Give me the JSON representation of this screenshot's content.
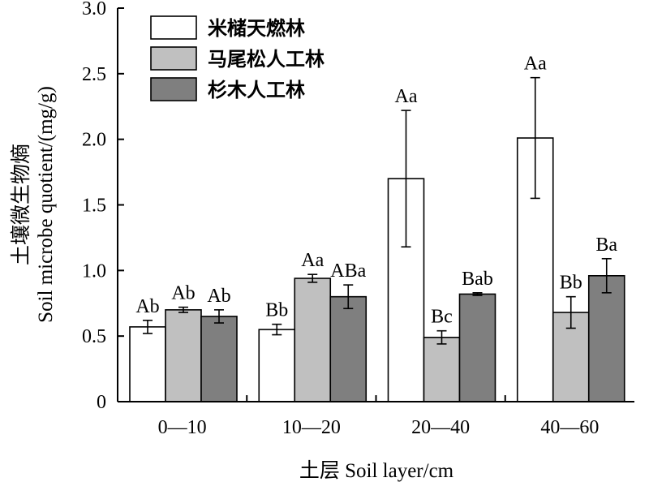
{
  "chart_data": {
    "type": "bar",
    "xlabel": "土层 Soil layer/cm",
    "ylabel_line1": "土壤微生物熵",
    "ylabel_line2": "Soil microbe quotient/(mg/g)",
    "ylim": [
      0,
      3.0
    ],
    "yticks": [
      "0",
      "0.5",
      "1.0",
      "1.5",
      "2.0",
      "2.5",
      "3.0"
    ],
    "ytick_values": [
      0,
      0.5,
      1.0,
      1.5,
      2.0,
      2.5,
      3.0
    ],
    "categories": [
      "0—10",
      "10—20",
      "20—40",
      "40—60"
    ],
    "legend_position": "top-left",
    "series": [
      {
        "name": "米槠天燃林",
        "color": "#ffffff",
        "values": [
          0.57,
          0.55,
          1.7,
          2.01
        ],
        "errors": [
          0.05,
          0.04,
          0.52,
          0.46
        ],
        "letters": [
          "Ab",
          "Bb",
          "Aa",
          "Aa"
        ]
      },
      {
        "name": "马尾松人工林",
        "color": "#c0c0c0",
        "values": [
          0.7,
          0.94,
          0.49,
          0.68
        ],
        "errors": [
          0.02,
          0.03,
          0.05,
          0.12
        ],
        "letters": [
          "Ab",
          "Aa",
          "Bc",
          "Bb"
        ]
      },
      {
        "name": "杉木人工林",
        "color": "#7f7f7f",
        "values": [
          0.65,
          0.8,
          0.82,
          0.96
        ],
        "errors": [
          0.05,
          0.09,
          0.01,
          0.13
        ],
        "letters": [
          "Ab",
          "ABa",
          "Bab",
          "Ba"
        ]
      }
    ]
  }
}
